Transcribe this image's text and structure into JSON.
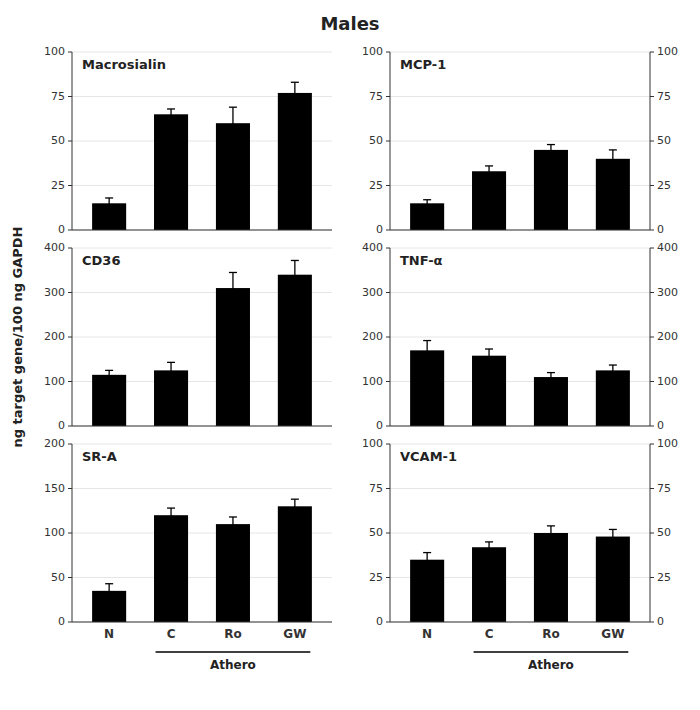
{
  "title": "Males",
  "ylabel": "ng target gene/100 ng GAPDH",
  "chart_data": [
    {
      "type": "bar",
      "title": "Macrosialin",
      "categories": [
        null,
        null,
        null,
        null
      ],
      "values": [
        15,
        65,
        60,
        77
      ],
      "errors": [
        3,
        3,
        9,
        6
      ],
      "color": "#000000",
      "ylim": [
        0,
        100
      ],
      "yticks": [
        0,
        25,
        50,
        75,
        100
      ]
    },
    {
      "type": "bar",
      "title": "MCP-1",
      "categories": [
        null,
        null,
        null,
        null
      ],
      "values": [
        15,
        33,
        45,
        40
      ],
      "errors": [
        2,
        3,
        3,
        5
      ],
      "color": "#000000",
      "ylim": [
        0,
        100
      ],
      "yticks": [
        0,
        25,
        50,
        75,
        100
      ],
      "y2lim": [
        0,
        100
      ],
      "y2ticks": [
        0,
        25,
        50,
        75,
        100
      ]
    },
    {
      "type": "bar",
      "title": "CD36",
      "categories": [
        null,
        null,
        null,
        null
      ],
      "values": [
        115,
        125,
        310,
        340
      ],
      "errors": [
        10,
        18,
        35,
        32
      ],
      "color": "#000000",
      "ylim": [
        0,
        400
      ],
      "yticks": [
        0,
        100,
        200,
        300,
        400
      ]
    },
    {
      "type": "bar",
      "title": "TNF-α",
      "categories": [
        null,
        null,
        null,
        null
      ],
      "values": [
        170,
        158,
        110,
        125
      ],
      "errors": [
        22,
        15,
        10,
        12
      ],
      "color": "#000000",
      "ylim": [
        0,
        400
      ],
      "yticks": [
        0,
        100,
        200,
        300,
        400
      ],
      "y2lim": [
        0,
        400
      ],
      "y2ticks": [
        0,
        100,
        200,
        300,
        400
      ]
    },
    {
      "type": "bar",
      "title": "SR-A",
      "categories": [
        "N",
        "C",
        "Ro",
        "GW"
      ],
      "values": [
        35,
        120,
        110,
        130
      ],
      "errors": [
        8,
        8,
        8,
        8
      ],
      "color": "#000000",
      "ylim": [
        0,
        200
      ],
      "yticks": [
        0,
        50,
        100,
        150,
        200
      ],
      "annotations": [
        "Athero"
      ]
    },
    {
      "type": "bar",
      "title": "VCAM-1",
      "categories": [
        "N",
        "C",
        "Ro",
        "GW"
      ],
      "values": [
        35,
        42,
        50,
        48
      ],
      "errors": [
        4,
        3,
        4,
        4
      ],
      "color": "#000000",
      "ylim": [
        0,
        100
      ],
      "yticks": [
        0,
        25,
        50,
        75,
        100
      ],
      "y2lim": [
        0,
        100
      ],
      "y2ticks": [
        0,
        25,
        50,
        75,
        100
      ],
      "annotations": [
        "Athero"
      ]
    }
  ]
}
